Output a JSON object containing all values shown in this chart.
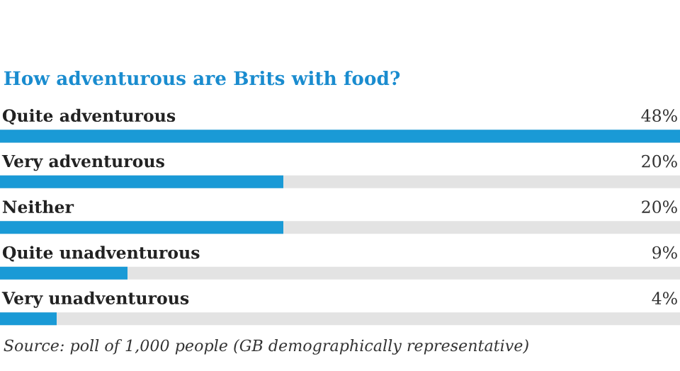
{
  "chart_data": {
    "type": "bar",
    "orientation": "horizontal",
    "title": "How adventurous are Brits with food?",
    "categories": [
      "Quite adventurous",
      "Very adventurous",
      "Neither",
      "Quite unadventurous",
      "Very unadventurous"
    ],
    "values": [
      48,
      20,
      20,
      9,
      4
    ],
    "color": "#1a9ad6",
    "value_labels": [
      "48%",
      "20%",
      "20%",
      "9%",
      "4%"
    ],
    "annotations": [
      "Source: poll of 1,000 people (GB demographically representative)"
    ]
  }
}
